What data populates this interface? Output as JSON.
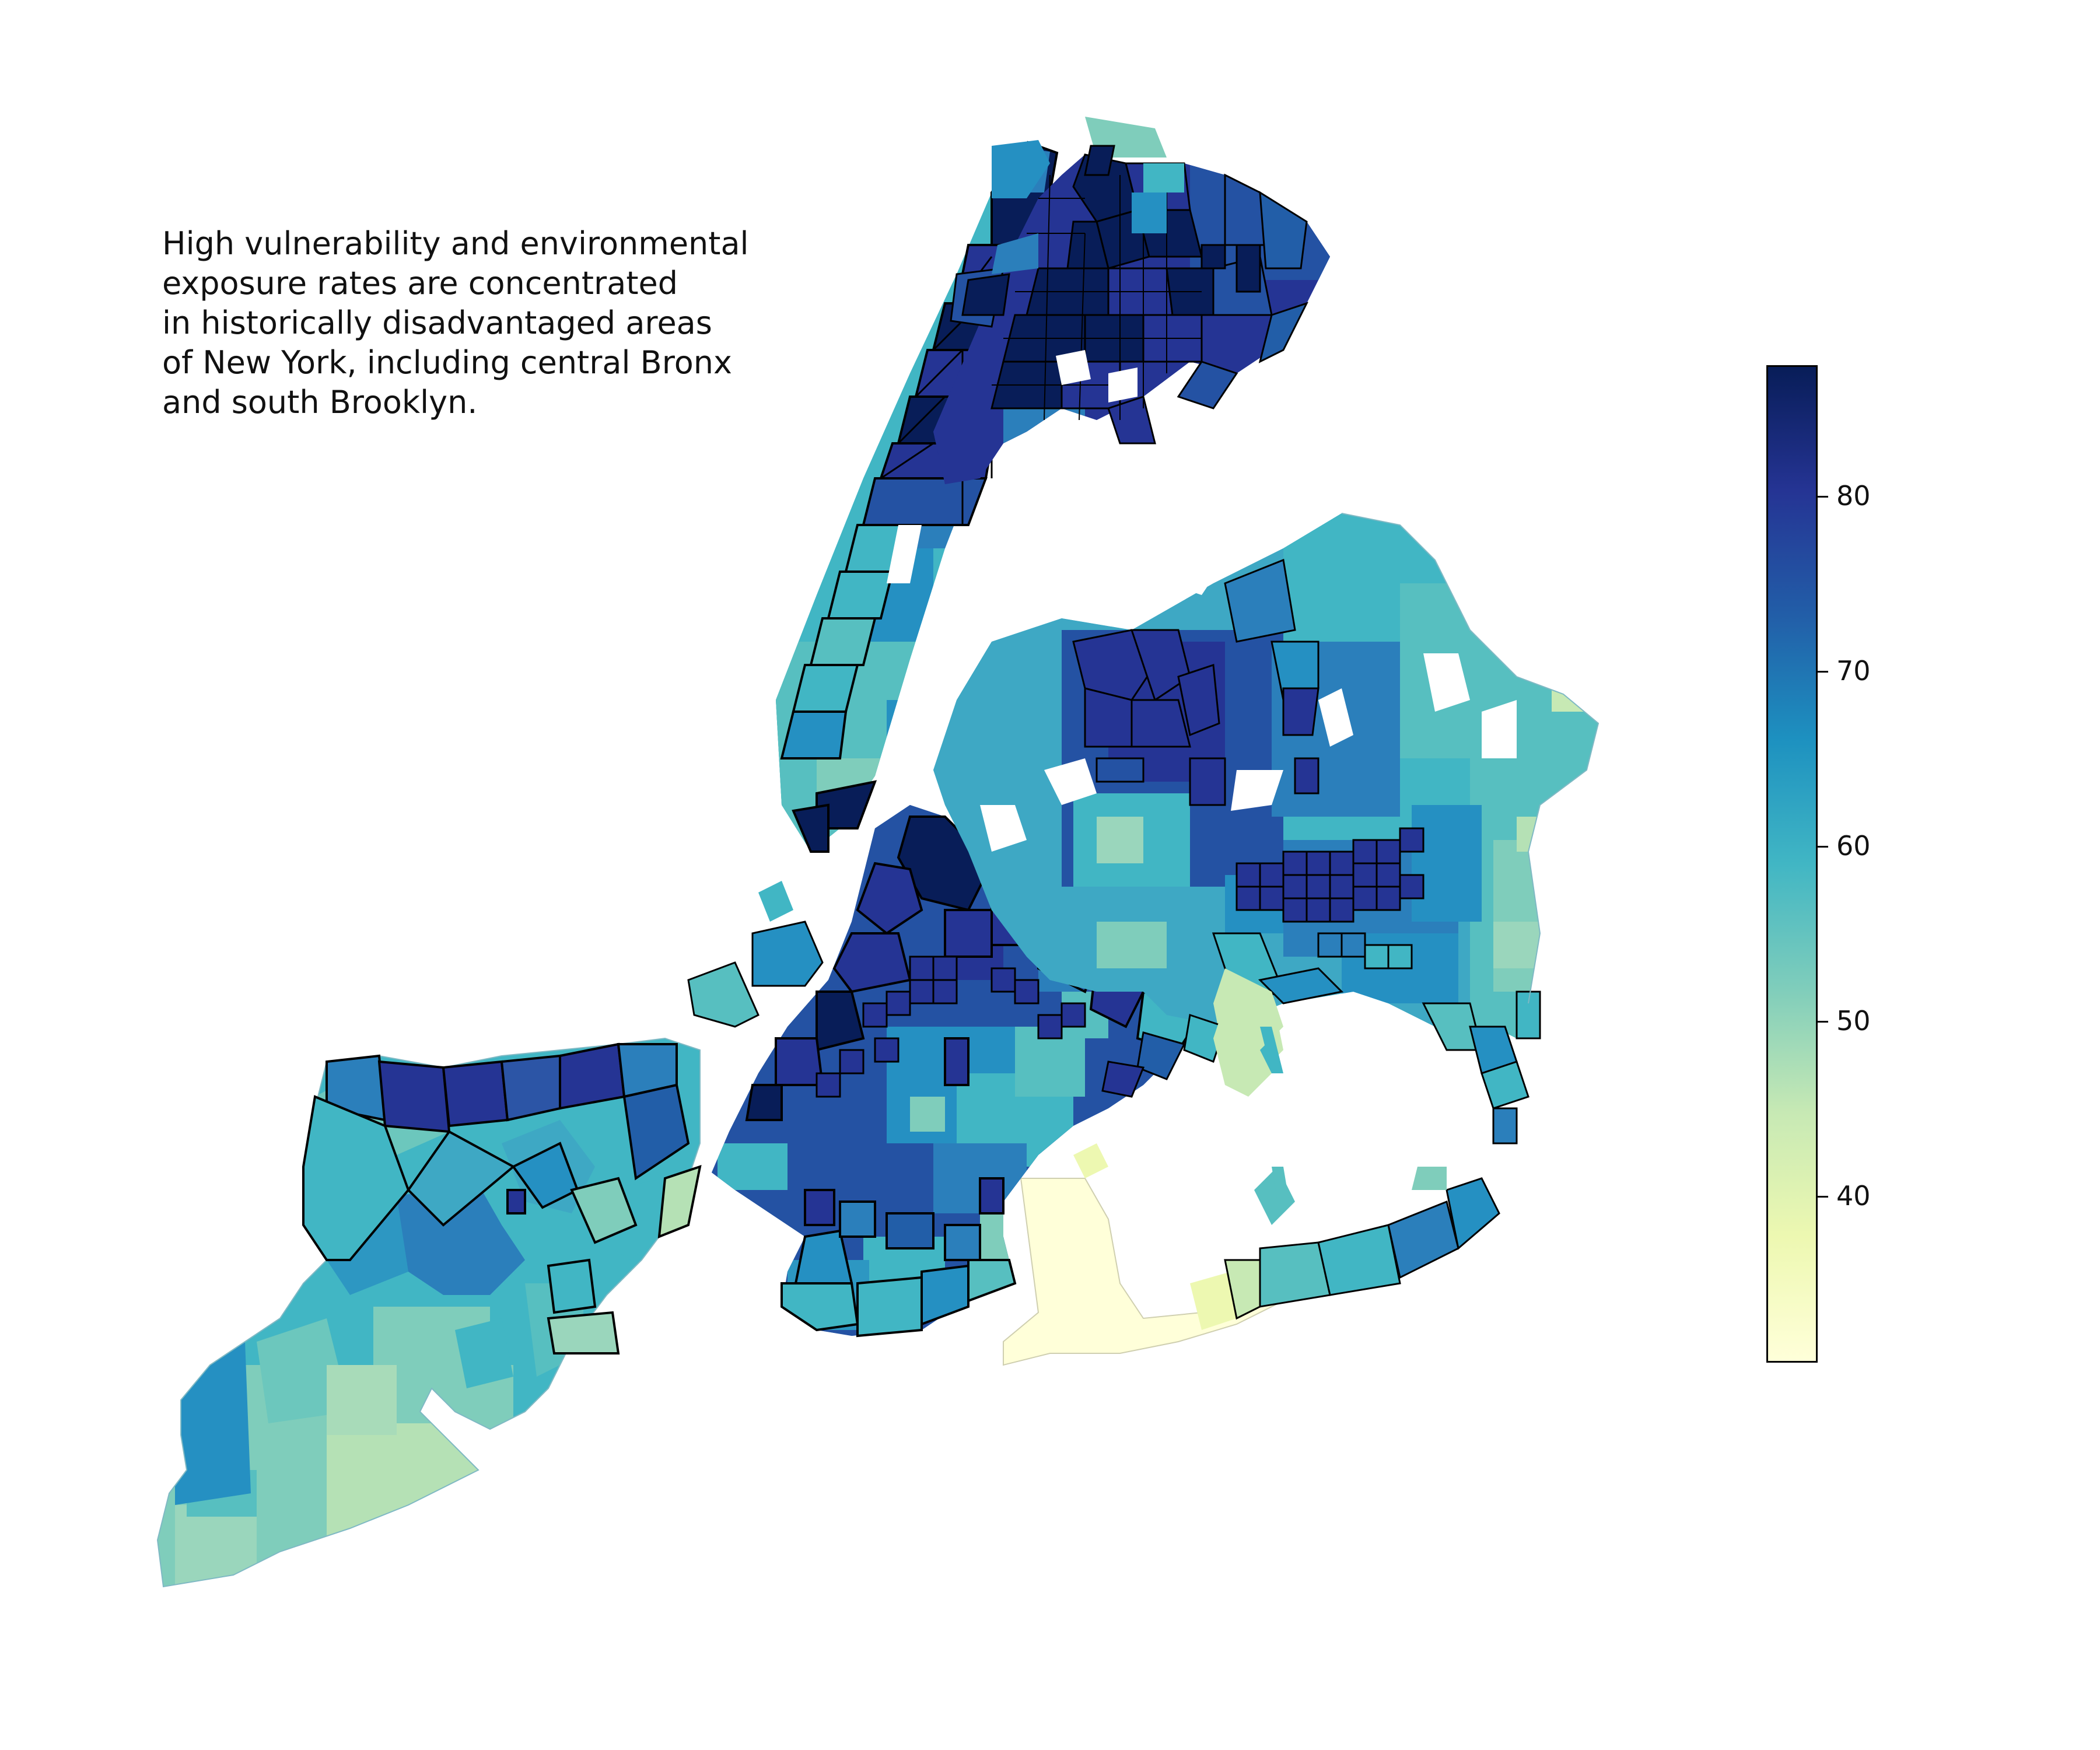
{
  "annotation": {
    "lines": [
      "High vulnerability and environmental",
      "exposure rates are concentrated",
      "in historically disadvantaged areas",
      "of New York, including central Bronx",
      "and south Brooklyn."
    ]
  },
  "colorbar": {
    "min": 30.5,
    "max": 87.5,
    "ticks": [
      {
        "value": 40,
        "label": "40"
      },
      {
        "value": 50,
        "label": "50"
      },
      {
        "value": 60,
        "label": "60"
      },
      {
        "value": 70,
        "label": "70"
      },
      {
        "value": 80,
        "label": "80"
      }
    ],
    "colormap": "YlGnBu",
    "colors": [
      "#ffffd9",
      "#edf8b1",
      "#c7e9b4",
      "#7fcdbb",
      "#41b6c4",
      "#1d91c0",
      "#225ea8",
      "#253494",
      "#081d58"
    ]
  },
  "map": {
    "region": "New York City",
    "highlight_outline_color": "#000000"
  }
}
